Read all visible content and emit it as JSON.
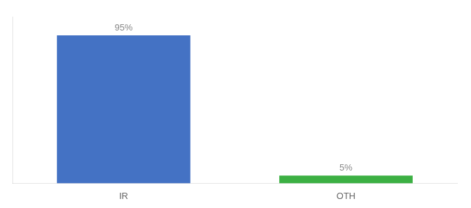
{
  "chart_data": {
    "type": "bar",
    "categories": [
      "IR",
      "OTH"
    ],
    "values": [
      95,
      5
    ],
    "colors": [
      "#4472c4",
      "#3cb043"
    ],
    "value_labels": [
      "95%",
      "5%"
    ],
    "data_labels": true,
    "ylim": [
      0,
      107
    ],
    "grid": false,
    "tick_labels": "x"
  }
}
